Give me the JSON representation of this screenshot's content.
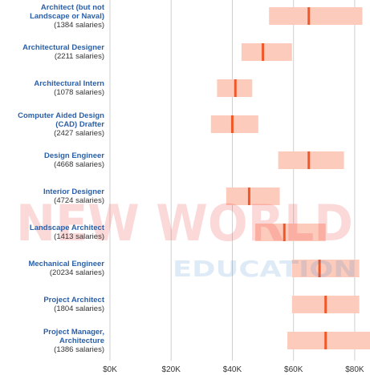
{
  "chart_data": {
    "type": "range",
    "categories": [
      {
        "name": "Architect (but not Landscape or Naval)",
        "count": "(1384 salaries)"
      },
      {
        "name": "Architectural Designer",
        "count": "(2211 salaries)"
      },
      {
        "name": "Architectural Intern",
        "count": "(1078 salaries)"
      },
      {
        "name": "Computer Aided Design (CAD) Drafter",
        "count": "(2427 salaries)"
      },
      {
        "name": "Design Engineer",
        "count": "(4668 salaries)"
      },
      {
        "name": "Interior Designer",
        "count": "(4724 salaries)"
      },
      {
        "name": "Landscape Architect",
        "count": "(1413 salaries)"
      },
      {
        "name": "Mechanical Engineer",
        "count": "(20234 salaries)"
      },
      {
        "name": "Project Architect",
        "count": "(1804 salaries)"
      },
      {
        "name": "Project Manager, Architecture",
        "count": "(1386 salaries)"
      }
    ],
    "low": [
      52,
      43,
      35,
      33,
      55,
      38,
      47.5,
      59.5,
      59.5,
      58
    ],
    "high": [
      82.5,
      59.5,
      46.5,
      48.5,
      76.5,
      55.5,
      70.5,
      81.5,
      81.5,
      85
    ],
    "median": [
      65,
      50,
      41,
      40,
      65,
      45.5,
      57,
      68.5,
      70.5,
      70.5
    ],
    "range_color": "#fdcbbb",
    "median_color": "#f0582a",
    "xlim": [
      0,
      85
    ],
    "xticks": [
      {
        "value": 0,
        "label": "$0K"
      },
      {
        "value": 20,
        "label": "$20K"
      },
      {
        "value": 40,
        "label": "$40K"
      },
      {
        "value": 60,
        "label": "$60K"
      },
      {
        "value": 80,
        "label": "$80K"
      }
    ],
    "grid": true
  },
  "watermark": {
    "line1": "NEW WORLD",
    "line2": "EDUCATION"
  }
}
